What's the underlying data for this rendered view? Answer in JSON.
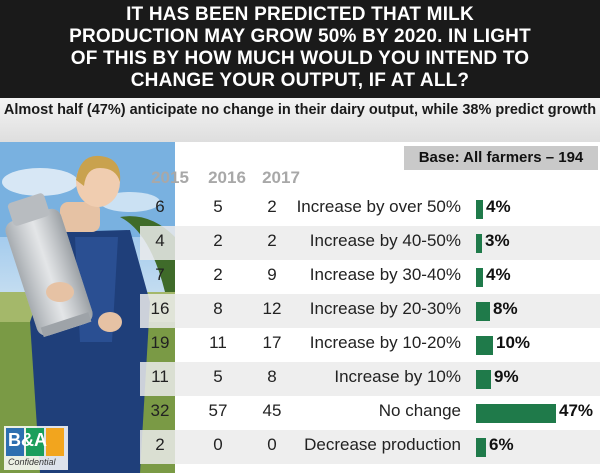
{
  "header": {
    "title_lines": [
      "IT HAS BEEN PREDICTED THAT MILK",
      "PRODUCTION MAY GROW 50% BY 2020. IN LIGHT",
      "OF THIS BY HOW MUCH WOULD YOU INTEND TO",
      "CHANGE YOUR OUTPUT, IF AT ALL?"
    ],
    "subtitle": "Almost half (47%) anticipate no change in their dairy output, while 38% predict growth",
    "base": "Base: All farmers – 194"
  },
  "logo": {
    "text": "B&A",
    "tagline": "Confidential"
  },
  "chart_data": {
    "type": "bar",
    "orientation": "horizontal",
    "categories": [
      "Increase by over 50%",
      "Increase by 40-50%",
      "Increase by 30-40%",
      "Increase by 20-30%",
      "Increase by 10-20%",
      "Increase by 10%",
      "No change",
      "Decrease production"
    ],
    "series": [
      {
        "values": [
          4,
          3,
          4,
          8,
          10,
          9,
          47,
          6
        ]
      }
    ],
    "value_labels": [
      "4%",
      "3%",
      "4%",
      "8%",
      "10%",
      "9%",
      "47%",
      "6%"
    ],
    "bar_color": "#1f7a4a",
    "xlim": [
      0,
      47
    ],
    "table": {
      "columns": [
        "2015",
        "2016",
        "2017"
      ],
      "rows": [
        [
          "6",
          "5",
          "2"
        ],
        [
          "4",
          "2",
          "2"
        ],
        [
          "7",
          "2",
          "9"
        ],
        [
          "16",
          "8",
          "12"
        ],
        [
          "19",
          "11",
          "17"
        ],
        [
          "11",
          "5",
          "8"
        ],
        [
          "32",
          "57",
          "45"
        ],
        [
          "2",
          "0",
          "0"
        ]
      ]
    }
  }
}
